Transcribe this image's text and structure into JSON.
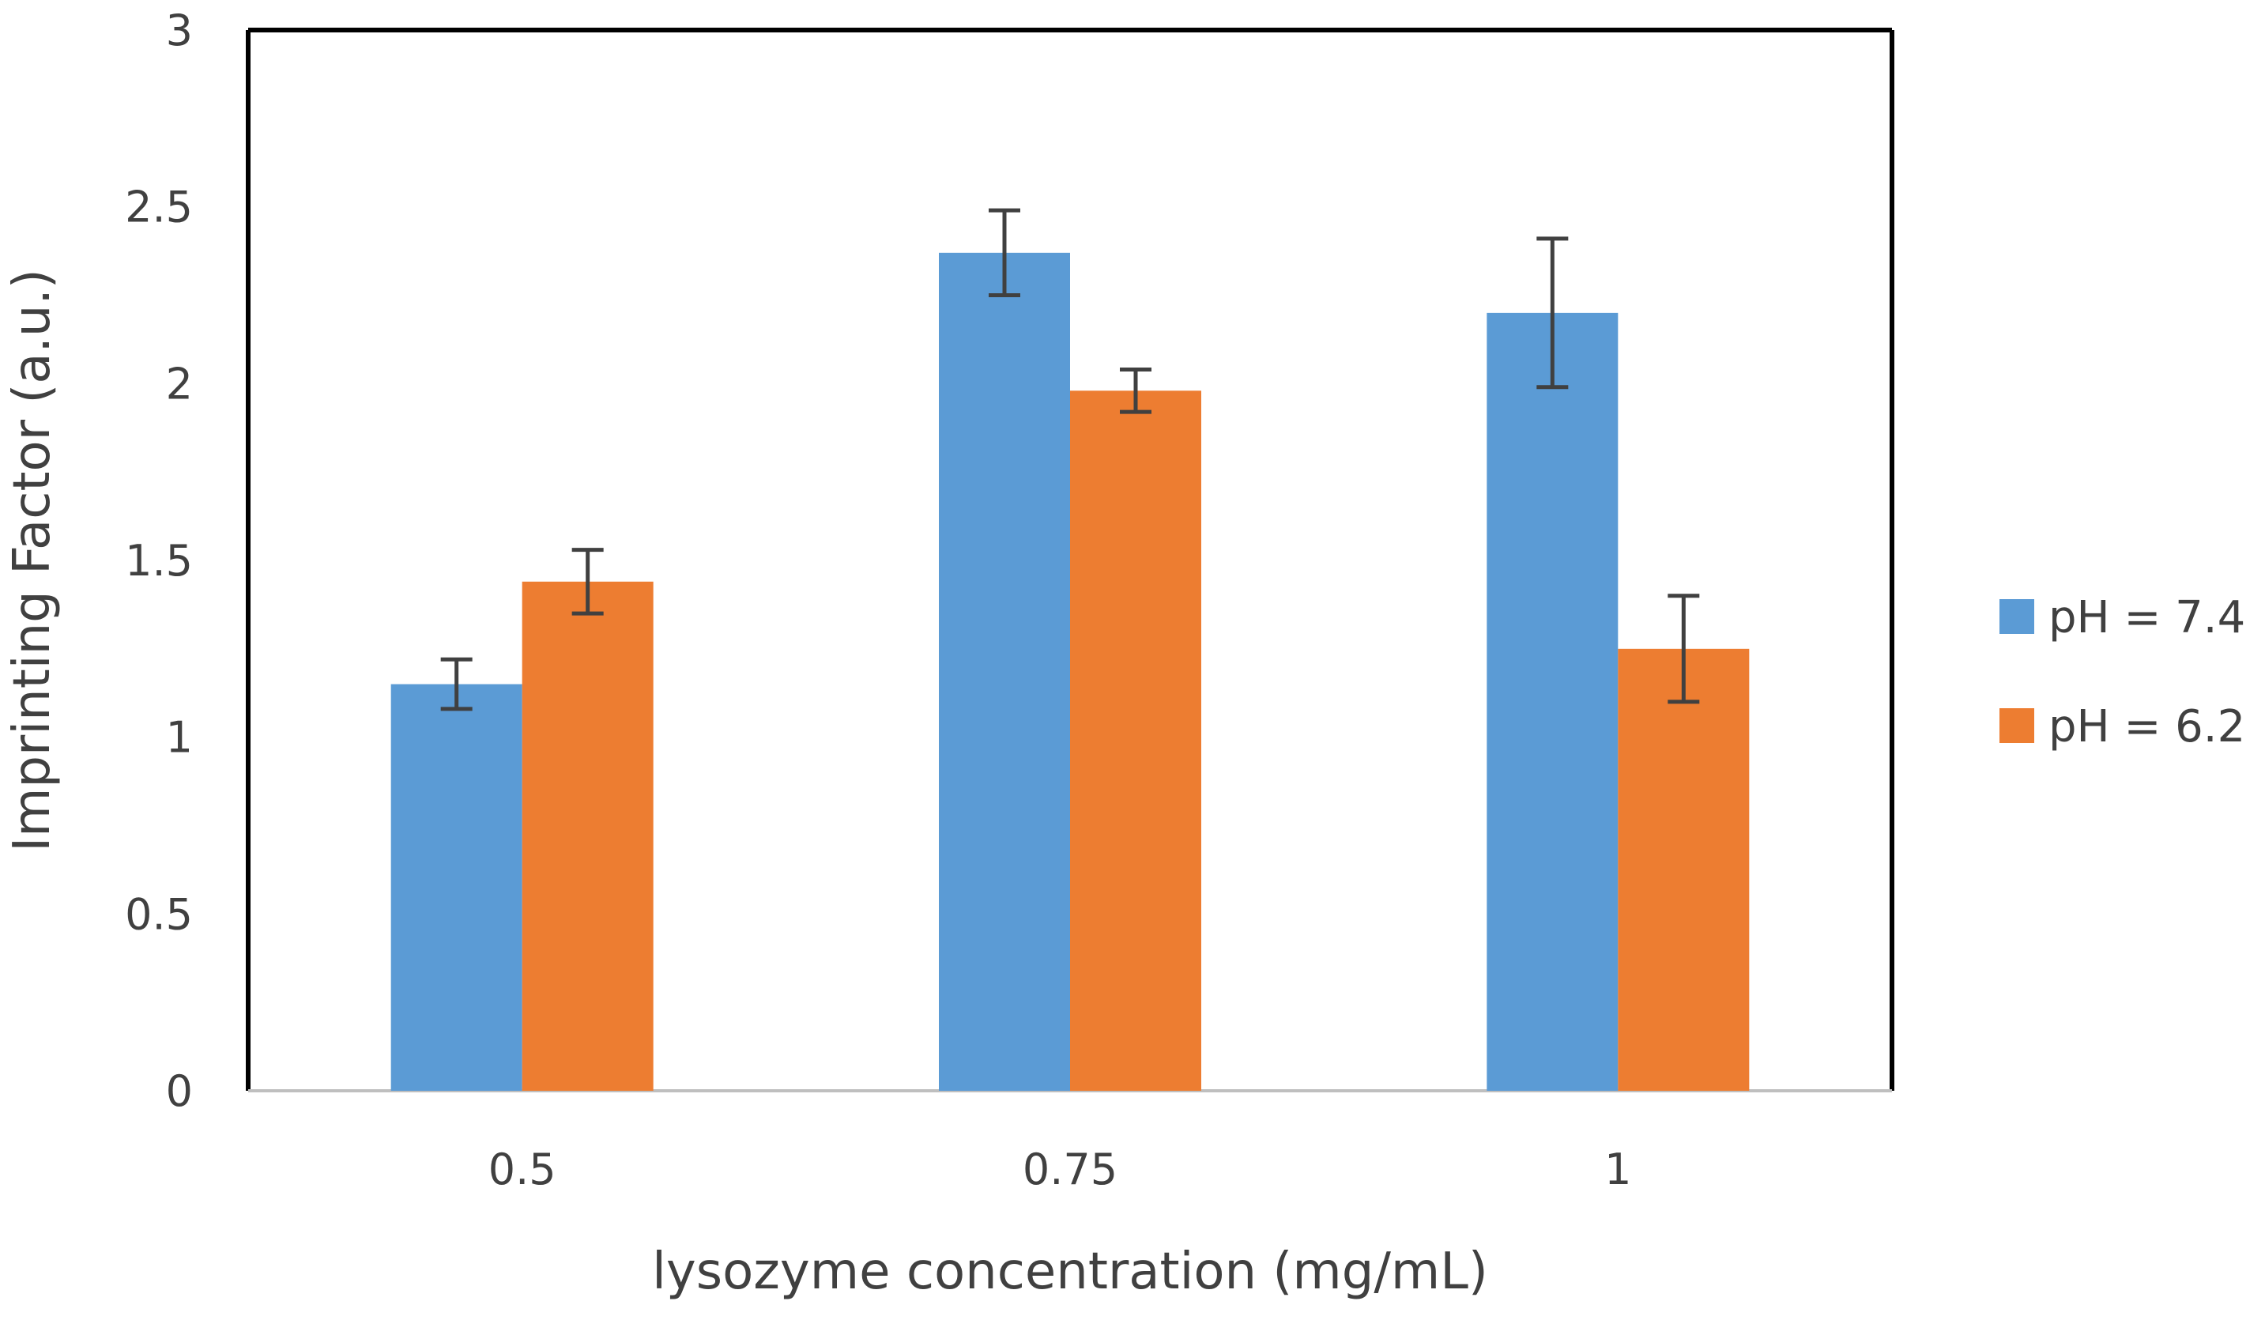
{
  "chart_data": {
    "type": "bar",
    "title": "",
    "xlabel": "lysozyme concentration (mg/mL)",
    "ylabel": "Imprinting Factor (a.u.)",
    "ylim": [
      0,
      3
    ],
    "yticks": [
      "0",
      "0.5",
      "1",
      "1.5",
      "2",
      "2.5",
      "3"
    ],
    "categories": [
      "0.5",
      "0.75",
      "1"
    ],
    "series": [
      {
        "name": "pH = 7.4",
        "color": "#5B9BD5",
        "values": [
          1.15,
          2.37,
          2.2
        ],
        "errors": [
          0.07,
          0.12,
          0.21
        ]
      },
      {
        "name": "pH = 6.2",
        "color": "#ED7D31",
        "values": [
          1.44,
          1.98,
          1.25
        ],
        "errors": [
          0.09,
          0.06,
          0.15
        ]
      }
    ],
    "legend_position": "right",
    "grid": false,
    "error_bar_color": "#404040"
  }
}
